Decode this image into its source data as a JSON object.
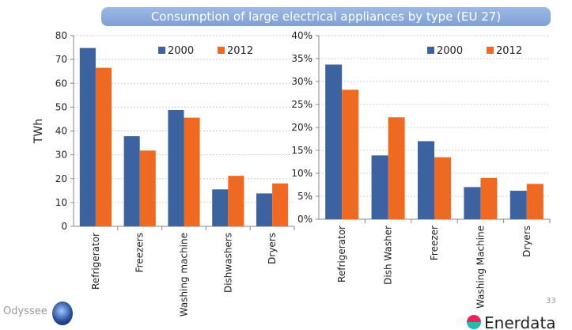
{
  "title": "Consumption of large electrical appliances by type (EU 27)",
  "colors": {
    "2000": "#3c62a0",
    "2012": "#ee6a22",
    "banner": "#8eabdc"
  },
  "chart_data": [
    {
      "type": "bar",
      "ylabel": "TWh",
      "ylim": [
        0,
        80
      ],
      "yticks": [
        "0",
        "10",
        "20",
        "30",
        "40",
        "50",
        "60",
        "70",
        "80"
      ],
      "grid": true,
      "legend": "top",
      "categories": [
        "Refrigerator",
        "Freezers",
        "Washing machine",
        "Dishwashers",
        "Dryers"
      ],
      "series": [
        {
          "name": "2000",
          "values": [
            74.8,
            37.8,
            48.8,
            15.5,
            13.8
          ]
        },
        {
          "name": "2012",
          "values": [
            66.5,
            31.8,
            45.6,
            21.2,
            18.0
          ]
        }
      ]
    },
    {
      "type": "bar",
      "ylabel": "",
      "ylim": [
        0,
        40
      ],
      "yticks": [
        "0%",
        "5%",
        "10%",
        "15%",
        "20%",
        "25%",
        "30%",
        "35%",
        "40%"
      ],
      "grid": true,
      "legend": "top-right",
      "categories": [
        "Refrigerator",
        "Dish Washer",
        "Freezer",
        "Washing Machine",
        "Dryers"
      ],
      "series": [
        {
          "name": "2000",
          "values": [
            33.7,
            13.9,
            17.0,
            7.0,
            6.2
          ]
        },
        {
          "name": "2012",
          "values": [
            28.2,
            22.2,
            13.5,
            9.0,
            7.7
          ]
        }
      ]
    }
  ],
  "footer": {
    "left_logo": "Odyssee",
    "page_number": "33",
    "right_logo": "Enerdata"
  }
}
